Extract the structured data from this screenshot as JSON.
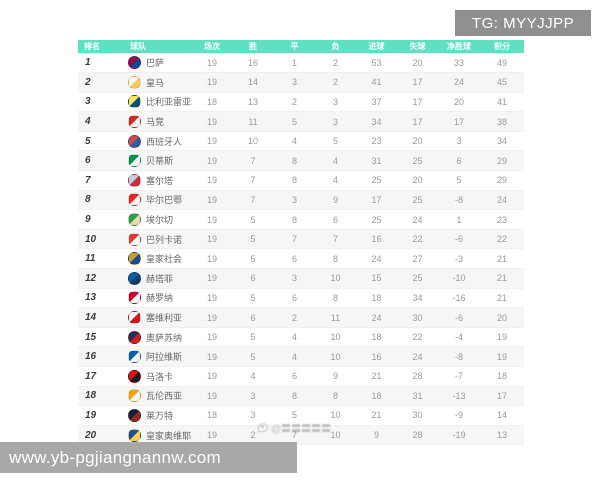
{
  "overlays": {
    "tg_badge": "TG: MYYJJPP",
    "site_bar": "www.yb-pgjiangnannw.com",
    "watermark_text": "@〓〓〓〓〓"
  },
  "colors": {
    "header_bg": "#61e0c1",
    "tg_badge_bg": "#909090",
    "site_bar_bg": "#a8a8a8"
  },
  "table": {
    "headers": [
      "排名",
      "球队",
      "场次",
      "胜",
      "平",
      "负",
      "进球",
      "失球",
      "净胜球",
      "积分"
    ],
    "column_keys": [
      "played",
      "win",
      "draw",
      "loss",
      "goals_for",
      "goals_against",
      "goal_diff",
      "points"
    ],
    "rows": [
      {
        "rank": "1",
        "team": "巴萨",
        "logo": [
          "#a50044",
          "#004d98"
        ],
        "stats": [
          "19",
          "16",
          "1",
          "2",
          "53",
          "20",
          "33",
          "49"
        ]
      },
      {
        "rank": "2",
        "team": "皇马",
        "logo": [
          "#fdfdf2",
          "#ffc659"
        ],
        "stats": [
          "19",
          "14",
          "3",
          "2",
          "41",
          "17",
          "24",
          "45"
        ]
      },
      {
        "rank": "3",
        "team": "比利亚雷亚尔",
        "logo": [
          "#ffe65c",
          "#005187"
        ],
        "stats": [
          "18",
          "13",
          "2",
          "3",
          "37",
          "17",
          "20",
          "41"
        ]
      },
      {
        "rank": "4",
        "team": "马竞",
        "logo": [
          "#d6281e",
          "#f5f5f5"
        ],
        "stats": [
          "19",
          "11",
          "5",
          "3",
          "34",
          "17",
          "17",
          "38"
        ]
      },
      {
        "rank": "5",
        "team": "西班牙人",
        "logo": [
          "#c94b4b",
          "#2b5fa3"
        ],
        "stats": [
          "19",
          "10",
          "4",
          "5",
          "23",
          "20",
          "3",
          "34"
        ]
      },
      {
        "rank": "6",
        "team": "贝蒂斯",
        "logo": [
          "#00954c",
          "#f5f5f5"
        ],
        "stats": [
          "19",
          "7",
          "8",
          "4",
          "31",
          "25",
          "6",
          "29"
        ]
      },
      {
        "rank": "7",
        "team": "塞尔塔",
        "logo": [
          "#b9cfe8",
          "#d12d34"
        ],
        "stats": [
          "19",
          "7",
          "8",
          "4",
          "25",
          "20",
          "5",
          "29"
        ]
      },
      {
        "rank": "8",
        "team": "毕尔巴鄂",
        "logo": [
          "#ee2523",
          "#f5f5f5"
        ],
        "stats": [
          "19",
          "7",
          "3",
          "9",
          "17",
          "25",
          "-8",
          "24"
        ]
      },
      {
        "rank": "9",
        "team": "埃尔切",
        "logo": [
          "#2e9e4f",
          "#e8d9b0"
        ],
        "stats": [
          "19",
          "5",
          "8",
          "6",
          "25",
          "24",
          "1",
          "23"
        ]
      },
      {
        "rank": "10",
        "team": "巴列卡诺",
        "logo": [
          "#e53935",
          "#fdfdfd"
        ],
        "stats": [
          "19",
          "5",
          "7",
          "7",
          "16",
          "22",
          "-6",
          "22"
        ]
      },
      {
        "rank": "11",
        "team": "皇家社会",
        "logo": [
          "#c9a227",
          "#1c4a9c"
        ],
        "stats": [
          "19",
          "5",
          "6",
          "8",
          "24",
          "27",
          "-3",
          "21"
        ]
      },
      {
        "rank": "12",
        "team": "赫塔菲",
        "logo": [
          "#0b5f9e",
          "#123c6e"
        ],
        "stats": [
          "19",
          "6",
          "3",
          "10",
          "15",
          "25",
          "-10",
          "21"
        ]
      },
      {
        "rank": "13",
        "team": "赫罗纳",
        "logo": [
          "#d00027",
          "#f5f5f5"
        ],
        "stats": [
          "19",
          "5",
          "6",
          "8",
          "18",
          "34",
          "-16",
          "21"
        ]
      },
      {
        "rank": "14",
        "team": "塞维利亚",
        "logo": [
          "#f7f7f7",
          "#d8121a"
        ],
        "stats": [
          "19",
          "6",
          "2",
          "11",
          "24",
          "30",
          "-6",
          "20"
        ]
      },
      {
        "rank": "15",
        "team": "奥萨苏纳",
        "logo": [
          "#12355f",
          "#d91a21"
        ],
        "stats": [
          "19",
          "5",
          "4",
          "10",
          "18",
          "22",
          "-4",
          "19"
        ]
      },
      {
        "rank": "16",
        "team": "阿拉维斯",
        "logo": [
          "#0761af",
          "#f5f5f5"
        ],
        "stats": [
          "19",
          "5",
          "4",
          "10",
          "16",
          "24",
          "-8",
          "19"
        ]
      },
      {
        "rank": "17",
        "team": "马洛卡",
        "logo": [
          "#e20613",
          "#1a1a1a"
        ],
        "stats": [
          "19",
          "4",
          "6",
          "9",
          "21",
          "28",
          "-7",
          "18"
        ]
      },
      {
        "rank": "18",
        "team": "瓦伦西亚",
        "logo": [
          "#f7a800",
          "#f5f5f5"
        ],
        "stats": [
          "19",
          "3",
          "8",
          "8",
          "18",
          "31",
          "-13",
          "17"
        ]
      },
      {
        "rank": "19",
        "team": "莱万特",
        "logo": [
          "#0a2240",
          "#922820"
        ],
        "stats": [
          "18",
          "3",
          "5",
          "10",
          "21",
          "30",
          "-9",
          "14"
        ]
      },
      {
        "rank": "20",
        "team": "皇家奥维耶多",
        "logo": [
          "#1b4fa0",
          "#ffd24a"
        ],
        "stats": [
          "19",
          "2",
          "7",
          "10",
          "9",
          "28",
          "-19",
          "13"
        ]
      }
    ]
  }
}
